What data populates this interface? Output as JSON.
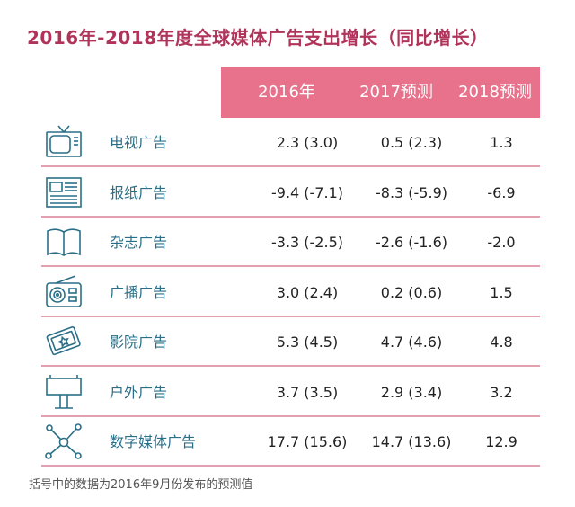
{
  "title": "2016年-2018年度全球媒体广告支出增长（同比增长）",
  "chart_data": {
    "type": "table",
    "columns": [
      "2016年",
      "2017预测",
      "2018预测"
    ],
    "rows": [
      {
        "label": "电视广告",
        "icon": "tv-icon",
        "values": [
          "2.3 (3.0)",
          "0.5 (2.3)",
          "1.3"
        ]
      },
      {
        "label": "报纸广告",
        "icon": "newspaper-icon",
        "values": [
          "-9.4 (-7.1)",
          "-8.3 (-5.9)",
          "-6.9"
        ]
      },
      {
        "label": "杂志广告",
        "icon": "magazine-icon",
        "values": [
          "-3.3 (-2.5)",
          "-2.6 (-1.6)",
          "-2.0"
        ]
      },
      {
        "label": "广播广告",
        "icon": "radio-icon",
        "values": [
          "3.0 (2.4)",
          "0.2 (0.6)",
          "1.5"
        ]
      },
      {
        "label": "影院广告",
        "icon": "cinema-ticket-icon",
        "values": [
          "5.3 (4.5)",
          "4.7 (4.6)",
          "4.8"
        ]
      },
      {
        "label": "户外广告",
        "icon": "billboard-icon",
        "values": [
          "3.7 (3.5)",
          "2.9 (3.4)",
          "3.2"
        ]
      },
      {
        "label": "数字媒体广告",
        "icon": "network-icon",
        "values": [
          "17.7 (15.6)",
          "14.7 (13.6)",
          "12.9"
        ]
      }
    ]
  },
  "footnote": "括号中的数据为2016年9月份发布的预测值",
  "colors": {
    "title": "#b0335a",
    "header_bg": "#e8728c",
    "label": "#2a6f88",
    "rule": "#e3a0b0",
    "icon": "#2a6f88"
  }
}
